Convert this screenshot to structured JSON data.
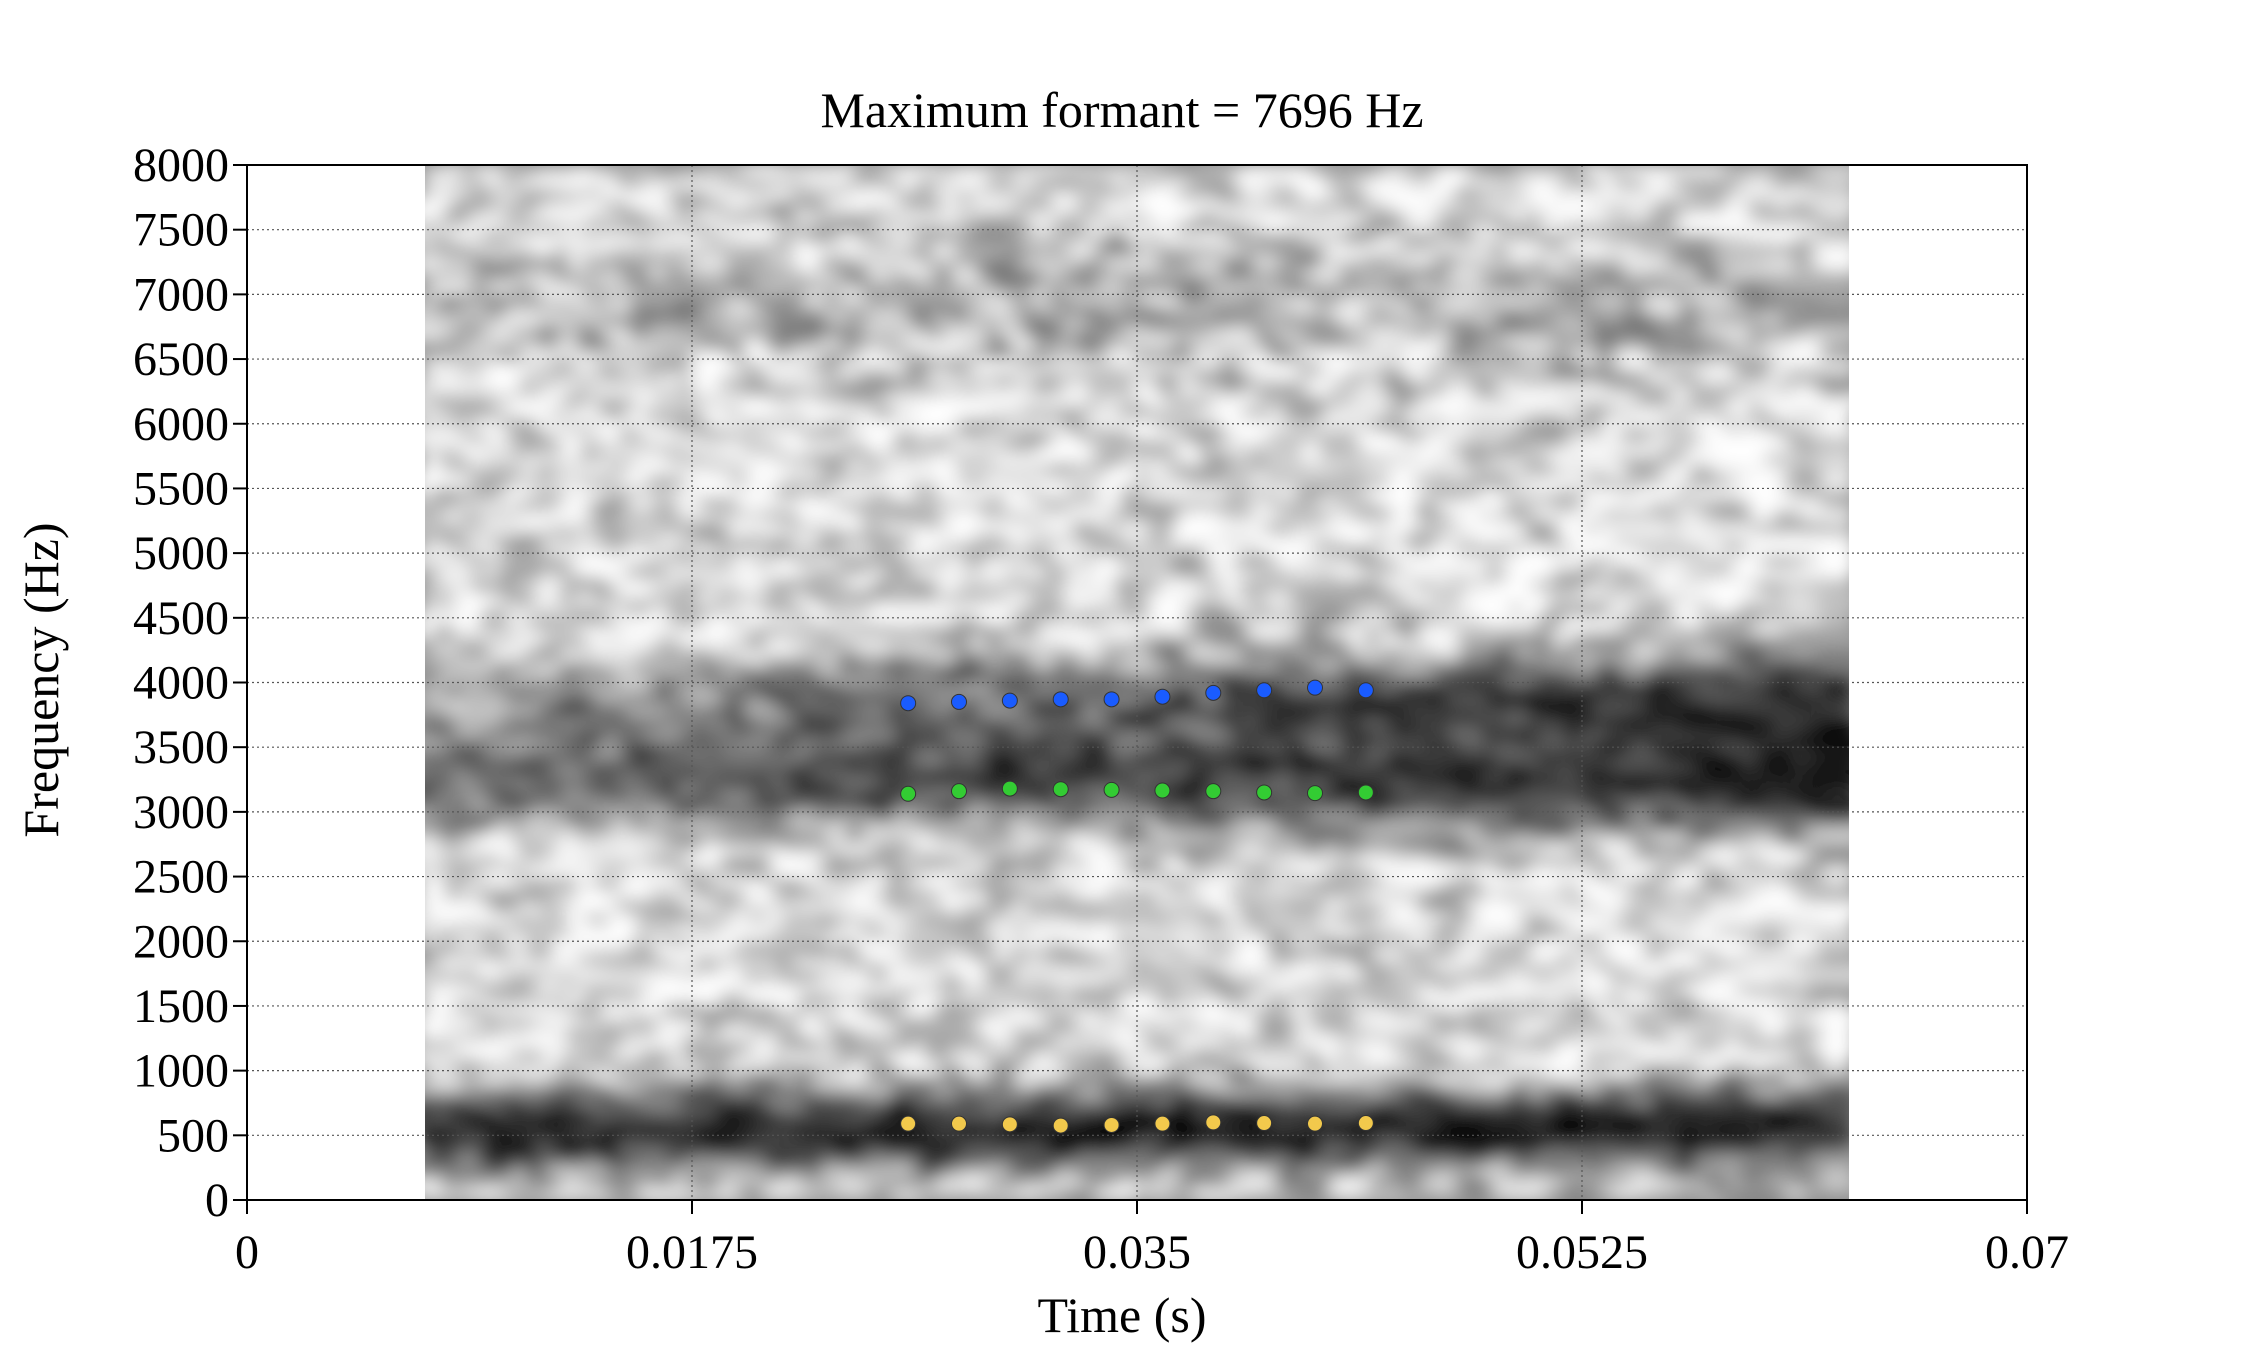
{
  "chart_data": {
    "type": "scatter",
    "title": "Maximum formant = 7696 Hz",
    "xlabel": "Time (s)",
    "ylabel": "Frequency (Hz)",
    "xlim": [
      0,
      0.07
    ],
    "ylim": [
      0,
      8000
    ],
    "x_ticks": [
      "0",
      "0.0175",
      "0.035",
      "0.0525",
      "0.07"
    ],
    "x_tick_values": [
      0,
      0.0175,
      0.035,
      0.0525,
      0.07
    ],
    "y_ticks": [
      "0",
      "500",
      "1000",
      "1500",
      "2000",
      "2500",
      "3000",
      "3500",
      "4000",
      "4500",
      "5000",
      "5500",
      "6000",
      "6500",
      "7000",
      "7500",
      "8000"
    ],
    "y_tick_values": [
      0,
      500,
      1000,
      1500,
      2000,
      2500,
      3000,
      3500,
      4000,
      4500,
      5000,
      5500,
      6000,
      6500,
      7000,
      7500,
      8000
    ],
    "grid": true,
    "background": "grayscale spectrogram",
    "spectrogram_time_range": [
      0.007,
      0.063
    ],
    "x": [
      0.026,
      0.028,
      0.03,
      0.032,
      0.034,
      0.036,
      0.038,
      0.04,
      0.042,
      0.044
    ],
    "series": [
      {
        "color": "#f2c94c",
        "values": [
          590,
          590,
          585,
          575,
          580,
          590,
          600,
          595,
          590,
          595
        ]
      },
      {
        "color": "#33cc33",
        "values": [
          3140,
          3160,
          3180,
          3175,
          3170,
          3165,
          3160,
          3150,
          3145,
          3150
        ]
      },
      {
        "color": "#1a5cff",
        "values": [
          3840,
          3850,
          3860,
          3870,
          3870,
          3890,
          3920,
          3940,
          3960,
          3940
        ]
      }
    ]
  }
}
